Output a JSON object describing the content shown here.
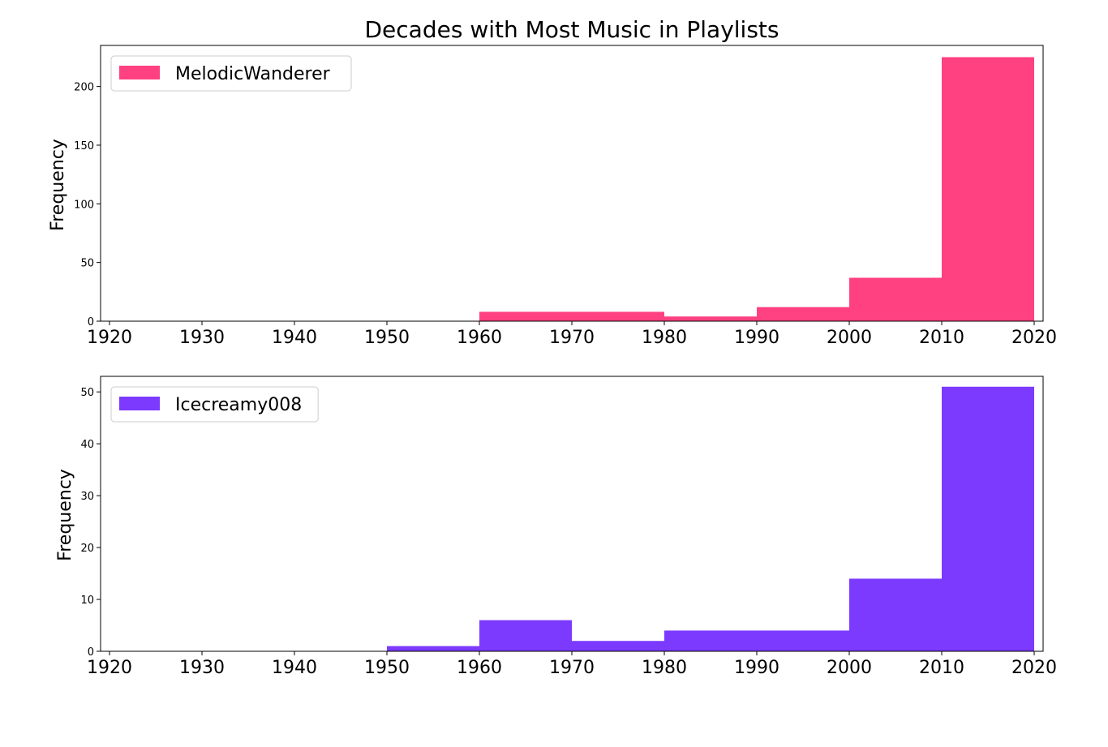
{
  "chart_data": {
    "title": "Decades with Most Music in Playlists",
    "type": "bar",
    "panels": [
      {
        "name": "MelodicWanderer",
        "color": "#ff4081",
        "ylabel": "Frequency",
        "xlim": [
          1920,
          2020
        ],
        "ylim": [
          0,
          235
        ],
        "x_ticks": [
          "1920",
          "1930",
          "1940",
          "1950",
          "1960",
          "1970",
          "1980",
          "1990",
          "2000",
          "2010",
          "2020"
        ],
        "y_ticks": [
          "0",
          "50",
          "100",
          "150",
          "200"
        ],
        "y_tick_values": [
          0,
          50,
          100,
          150,
          200
        ],
        "legend": "top-left",
        "bins": [
          {
            "start": 1920,
            "end": 1930,
            "value": 0
          },
          {
            "start": 1930,
            "end": 1940,
            "value": 0
          },
          {
            "start": 1940,
            "end": 1950,
            "value": 0
          },
          {
            "start": 1950,
            "end": 1960,
            "value": 0
          },
          {
            "start": 1960,
            "end": 1980,
            "value": 8
          },
          {
            "start": 1980,
            "end": 1990,
            "value": 4
          },
          {
            "start": 1990,
            "end": 2000,
            "value": 12
          },
          {
            "start": 2000,
            "end": 2010,
            "value": 37
          },
          {
            "start": 2010,
            "end": 2020,
            "value": 225
          }
        ]
      },
      {
        "name": "Icecreamy008",
        "color": "#7c3aff",
        "ylabel": "Frequency",
        "xlim": [
          1920,
          2020
        ],
        "ylim": [
          0,
          53
        ],
        "x_ticks": [
          "1920",
          "1930",
          "1940",
          "1950",
          "1960",
          "1970",
          "1980",
          "1990",
          "2000",
          "2010",
          "2020"
        ],
        "y_ticks": [
          "0",
          "10",
          "20",
          "30",
          "40",
          "50"
        ],
        "y_tick_values": [
          0,
          10,
          20,
          30,
          40,
          50
        ],
        "legend": "top-left",
        "bins": [
          {
            "start": 1920,
            "end": 1930,
            "value": 0
          },
          {
            "start": 1930,
            "end": 1940,
            "value": 0
          },
          {
            "start": 1940,
            "end": 1950,
            "value": 0
          },
          {
            "start": 1950,
            "end": 1960,
            "value": 1
          },
          {
            "start": 1960,
            "end": 1970,
            "value": 6
          },
          {
            "start": 1970,
            "end": 1980,
            "value": 2
          },
          {
            "start": 1980,
            "end": 2000,
            "value": 4
          },
          {
            "start": 2000,
            "end": 2010,
            "value": 14
          },
          {
            "start": 2010,
            "end": 2020,
            "value": 51
          }
        ]
      }
    ]
  }
}
